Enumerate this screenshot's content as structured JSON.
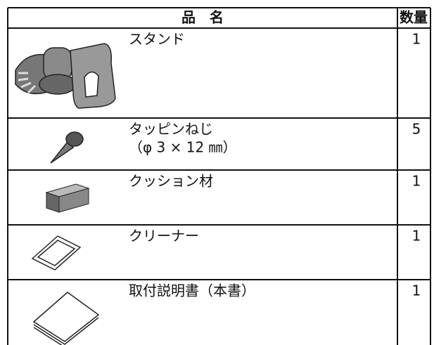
{
  "table": {
    "header": [
      "品　名",
      "数量"
    ],
    "rows": [
      {
        "name": [
          "スタンド"
        ],
        "qty": 1
      },
      {
        "name": [
          "タッピンねじ",
          "（φ 3 × 12 ㎜）"
        ],
        "qty": 5
      },
      {
        "name": [
          "クッション材"
        ],
        "qty": 1
      },
      {
        "name": [
          "クリーナー"
        ],
        "qty": 1
      },
      {
        "name": [
          "取付説明書（本書）"
        ],
        "qty": 1
      }
    ]
  }
}
